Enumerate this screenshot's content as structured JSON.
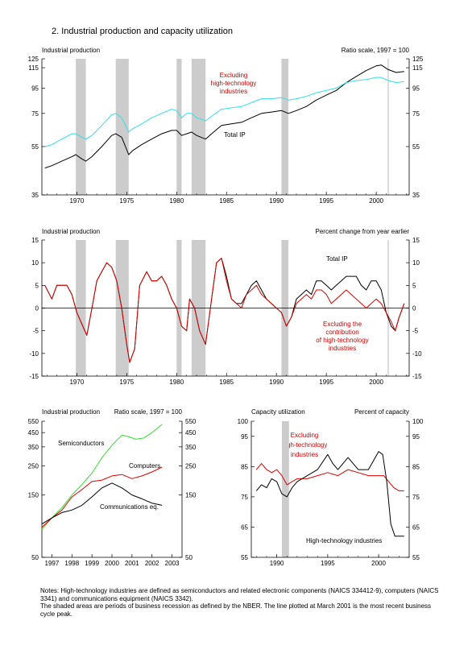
{
  "figure_title": "2.  Industrial production and capacity utilization",
  "colors": {
    "black": "#000000",
    "cyan": "#33e0e8",
    "red": "#dd0000",
    "green": "#33dd33",
    "recession": "#cccccc"
  },
  "recessions": [
    [
      1969.9,
      1970.9
    ],
    [
      1973.9,
      1975.2
    ],
    [
      1980.0,
      1980.5
    ],
    [
      1981.5,
      1982.9
    ],
    [
      1990.5,
      1991.2
    ]
  ],
  "cycle_peak_year": 2001.2,
  "chart_data": [
    {
      "id": "ip_levels",
      "type": "line",
      "title": "Industrial production",
      "right_title": "Ratio scale, 1997 = 100",
      "log_scale": true,
      "xlim": [
        1966.5,
        2003.3
      ],
      "ylim": [
        35,
        125
      ],
      "x_ticks": [
        1970,
        1975,
        1980,
        1985,
        1990,
        1995,
        2000
      ],
      "y_ticks": [
        35,
        55,
        75,
        95,
        115,
        125
      ],
      "annotations": {
        "total_ip": "Total IP",
        "excluding": [
          "Excluding",
          "high-technology",
          "industries"
        ]
      },
      "series": [
        {
          "name": "Total IP",
          "x": [
            1966.8,
            1967.5,
            1968.5,
            1969.5,
            1969.9,
            1970.5,
            1970.9,
            1971.5,
            1972.5,
            1973.5,
            1973.9,
            1974.5,
            1975.2,
            1975.6,
            1976.5,
            1977.5,
            1978.5,
            1979.5,
            1980.0,
            1980.5,
            1981.0,
            1981.5,
            1982.0,
            1982.9,
            1983.5,
            1984.5,
            1985.5,
            1986.5,
            1987.5,
            1988.5,
            1989.5,
            1990.5,
            1991.2,
            1992.0,
            1993.0,
            1994.0,
            1995.0,
            1996.0,
            1997.0,
            1998.0,
            1999.0,
            2000.0,
            2000.5,
            2001.2,
            2002.0,
            2002.8
          ],
          "y": [
            45,
            46,
            48,
            50,
            51,
            49,
            48,
            50,
            55,
            61,
            62,
            60,
            51,
            53,
            56,
            59,
            62,
            64,
            64,
            61,
            62,
            63,
            61,
            59,
            62,
            67,
            68,
            69,
            72,
            75,
            76,
            77,
            75,
            77,
            80,
            85,
            89,
            93,
            100,
            106,
            112,
            117,
            118,
            113,
            110,
            111
          ]
        },
        {
          "name": "Excluding high-technology industries",
          "x": [
            1966.8,
            1967.5,
            1968.5,
            1969.5,
            1969.9,
            1970.5,
            1970.9,
            1971.5,
            1972.5,
            1973.5,
            1973.9,
            1974.5,
            1975.2,
            1975.6,
            1976.5,
            1977.5,
            1978.5,
            1979.5,
            1980.0,
            1980.5,
            1981.0,
            1981.5,
            1982.0,
            1982.9,
            1983.5,
            1984.5,
            1985.5,
            1986.5,
            1987.5,
            1988.5,
            1989.5,
            1990.5,
            1991.2,
            1992.0,
            1993.0,
            1994.0,
            1995.0,
            1996.0,
            1997.0,
            1998.0,
            1999.0,
            2000.0,
            2000.5,
            2001.2,
            2002.0,
            2002.8
          ],
          "y": [
            55,
            56,
            59,
            62,
            62,
            60,
            59,
            61,
            67,
            74,
            75,
            72,
            63,
            65,
            68,
            72,
            75,
            78,
            77,
            72,
            75,
            75,
            72,
            70,
            73,
            78,
            79,
            80,
            83,
            86,
            86,
            87,
            85,
            86,
            88,
            91,
            93,
            95,
            100,
            102,
            103,
            105,
            105,
            102,
            100,
            101
          ]
        }
      ]
    },
    {
      "id": "ip_pct",
      "type": "line",
      "title": "Industrial production",
      "right_title": "Percent change from year earlier",
      "xlim": [
        1966.5,
        2003.3
      ],
      "ylim": [
        -15,
        15
      ],
      "x_ticks": [
        1970,
        1975,
        1980,
        1985,
        1990,
        1995,
        2000
      ],
      "y_ticks": [
        -15,
        -10,
        -5,
        0,
        5,
        10,
        15
      ],
      "annotations": {
        "total_ip": "Total IP",
        "excluding": [
          "Excluding the",
          "contribution",
          "of high-technology",
          "industries"
        ]
      },
      "series": [
        {
          "name": "Total IP",
          "x": [
            1966.8,
            1967.5,
            1968.0,
            1968.5,
            1969.0,
            1969.5,
            1970.0,
            1970.6,
            1971.0,
            1971.6,
            1972.0,
            1972.5,
            1973.0,
            1973.5,
            1974.0,
            1974.5,
            1975.0,
            1975.3,
            1975.8,
            1976.3,
            1977.0,
            1977.5,
            1978.0,
            1978.5,
            1979.0,
            1979.5,
            1980.0,
            1980.5,
            1981.0,
            1981.3,
            1981.8,
            1982.3,
            1982.9,
            1983.5,
            1984.0,
            1984.5,
            1985.0,
            1985.5,
            1986.0,
            1986.5,
            1987.0,
            1987.5,
            1988.0,
            1988.5,
            1989.0,
            1989.5,
            1990.0,
            1990.5,
            1991.0,
            1991.5,
            1992.0,
            1992.5,
            1993.0,
            1993.5,
            1994.0,
            1994.5,
            1995.0,
            1995.5,
            1996.0,
            1996.5,
            1997.0,
            1997.5,
            1998.0,
            1998.5,
            1999.0,
            1999.5,
            2000.0,
            2000.5,
            2001.0,
            2001.5,
            2001.9,
            2002.3,
            2002.8
          ],
          "y": [
            5,
            2,
            5,
            5,
            5,
            3,
            -1,
            -4,
            -6,
            1,
            6,
            8,
            10,
            9,
            6,
            0,
            -8,
            -12,
            -9,
            5,
            8,
            6,
            6,
            7,
            5,
            2,
            0,
            -4,
            -5,
            2,
            0,
            -5,
            -8,
            2,
            10,
            11,
            7,
            2,
            1,
            1,
            3,
            5,
            6,
            4,
            2,
            1,
            0,
            -1,
            -4,
            -2,
            2,
            3,
            4,
            3,
            6,
            6,
            5,
            4,
            5,
            6,
            7,
            7,
            7,
            5,
            4,
            6,
            6,
            4,
            -1,
            -4,
            -5,
            -2,
            1
          ]
        },
        {
          "name": "Excluding the contribution of high-technology industries",
          "x": [
            1966.8,
            1967.5,
            1968.0,
            1968.5,
            1969.0,
            1969.5,
            1970.0,
            1970.6,
            1971.0,
            1971.6,
            1972.0,
            1972.5,
            1973.0,
            1973.5,
            1974.0,
            1974.5,
            1975.0,
            1975.3,
            1975.8,
            1976.3,
            1977.0,
            1977.5,
            1978.0,
            1978.5,
            1979.0,
            1979.5,
            1980.0,
            1980.5,
            1981.0,
            1981.3,
            1981.8,
            1982.3,
            1982.9,
            1983.5,
            1984.0,
            1984.5,
            1985.0,
            1985.5,
            1986.0,
            1986.5,
            1987.0,
            1987.5,
            1988.0,
            1988.5,
            1989.0,
            1989.5,
            1990.0,
            1990.5,
            1991.0,
            1991.5,
            1992.0,
            1992.5,
            1993.0,
            1993.5,
            1994.0,
            1994.5,
            1995.0,
            1995.5,
            1996.0,
            1996.5,
            1997.0,
            1997.5,
            1998.0,
            1998.5,
            1999.0,
            1999.5,
            2000.0,
            2000.5,
            2001.0,
            2001.5,
            2001.9,
            2002.3,
            2002.8
          ],
          "y": [
            5,
            2,
            5,
            5,
            5,
            3,
            -1,
            -4,
            -6,
            1,
            6,
            8,
            10,
            9,
            6,
            0,
            -8,
            -12,
            -9,
            5,
            8,
            6,
            6,
            7,
            5,
            2,
            0,
            -4,
            -5,
            2,
            0,
            -5,
            -8,
            2,
            10,
            11,
            6,
            2,
            1,
            0,
            3,
            4,
            5,
            3,
            2,
            1,
            0,
            -1,
            -4,
            -2,
            1,
            2,
            3,
            2,
            4,
            4,
            3,
            1,
            2,
            3,
            4,
            3,
            2,
            1,
            0,
            1,
            2,
            1,
            -1,
            -3,
            -5,
            -2,
            1
          ]
        }
      ]
    },
    {
      "id": "hightech_ip",
      "type": "line",
      "title": "Industrial production",
      "right_title": "Ratio scale, 1997 = 100",
      "log_scale": true,
      "xlim": [
        1996.5,
        2003.5
      ],
      "ylim": [
        50,
        550
      ],
      "x_tick_labels": [
        "1997",
        "1998",
        "1999",
        "2000",
        "2001",
        "2002",
        "2003"
      ],
      "y_ticks": [
        50,
        150,
        250,
        350,
        450,
        550
      ],
      "series": [
        {
          "name": "Semiconductors",
          "color": "#33dd33",
          "x": [
            1996.5,
            1997.0,
            1997.5,
            1998.0,
            1998.5,
            1999.0,
            1999.5,
            2000.0,
            2000.5,
            2000.8,
            2001.2,
            2001.6,
            2002.0,
            2002.5
          ],
          "y": [
            82,
            100,
            120,
            150,
            180,
            220,
            290,
            360,
            430,
            420,
            400,
            410,
            450,
            520
          ]
        },
        {
          "name": "Computers",
          "color": "#dd0000",
          "x": [
            1996.5,
            1997.0,
            1997.5,
            1998.0,
            1998.5,
            1999.0,
            1999.5,
            2000.0,
            2000.5,
            2001.0,
            2001.5,
            2002.0,
            2002.5
          ],
          "y": [
            85,
            100,
            115,
            145,
            165,
            190,
            195,
            210,
            215,
            200,
            210,
            225,
            245
          ]
        },
        {
          "name": "Communications eq.",
          "color": "#000000",
          "x": [
            1996.5,
            1997.0,
            1997.5,
            1998.0,
            1998.5,
            1999.0,
            1999.5,
            2000.0,
            2000.5,
            2001.0,
            2001.5,
            2002.0,
            2002.5
          ],
          "y": [
            90,
            100,
            110,
            115,
            125,
            145,
            170,
            185,
            170,
            150,
            140,
            130,
            125
          ]
        }
      ]
    },
    {
      "id": "capacity_util",
      "type": "line",
      "title": "Capacity utilization",
      "right_title": "Percent of capacity",
      "xlim": [
        1987.5,
        2003.0
      ],
      "ylim": [
        55,
        100
      ],
      "x_ticks": [
        1990,
        1995,
        2000
      ],
      "y_ticks": [
        55,
        65,
        75,
        85,
        95,
        100
      ],
      "annotations": {
        "hightech": "High-technology industries",
        "excluding": [
          "Excluding",
          "high-technology",
          "industries"
        ]
      },
      "series": [
        {
          "name": "Excluding high-technology industries",
          "color": "#dd0000",
          "x": [
            1988.0,
            1988.5,
            1989.0,
            1989.5,
            1990.0,
            1990.5,
            1991.0,
            1991.5,
            1992.0,
            1993.0,
            1994.0,
            1995.0,
            1996.0,
            1997.0,
            1998.0,
            1999.0,
            2000.0,
            2000.5,
            2001.0,
            2001.5,
            2002.0,
            2002.5
          ],
          "y": [
            84,
            86,
            84,
            83,
            84,
            82,
            79,
            80,
            81,
            81,
            82,
            83,
            82,
            84,
            83,
            82,
            82,
            82,
            80,
            78,
            77,
            77
          ]
        },
        {
          "name": "High-technology industries",
          "color": "#000000",
          "x": [
            1988.0,
            1988.5,
            1989.0,
            1989.5,
            1990.0,
            1990.5,
            1991.0,
            1991.5,
            1992.0,
            1993.0,
            1994.0,
            1995.0,
            1995.5,
            1996.0,
            1997.0,
            1998.0,
            1999.0,
            2000.0,
            2000.4,
            2000.8,
            2001.2,
            2001.6,
            2002.0,
            2002.5
          ],
          "y": [
            77,
            79,
            78,
            81,
            80,
            76,
            75,
            78,
            80,
            82,
            84,
            89,
            86,
            84,
            88,
            84,
            84,
            90,
            89,
            80,
            66,
            62,
            62,
            62
          ]
        }
      ]
    }
  ],
  "notes": [
    "Notes:  High-technology industries are defined as semiconductors and related electronic components (NAICS 334412-9), computers (NAICS 3341) and communications equipment (NAICS 3342).",
    "The shaded areas are periods of business recession as defined by the NBER.  The line plotted at March 2001 is the most recent business cycle peak."
  ]
}
